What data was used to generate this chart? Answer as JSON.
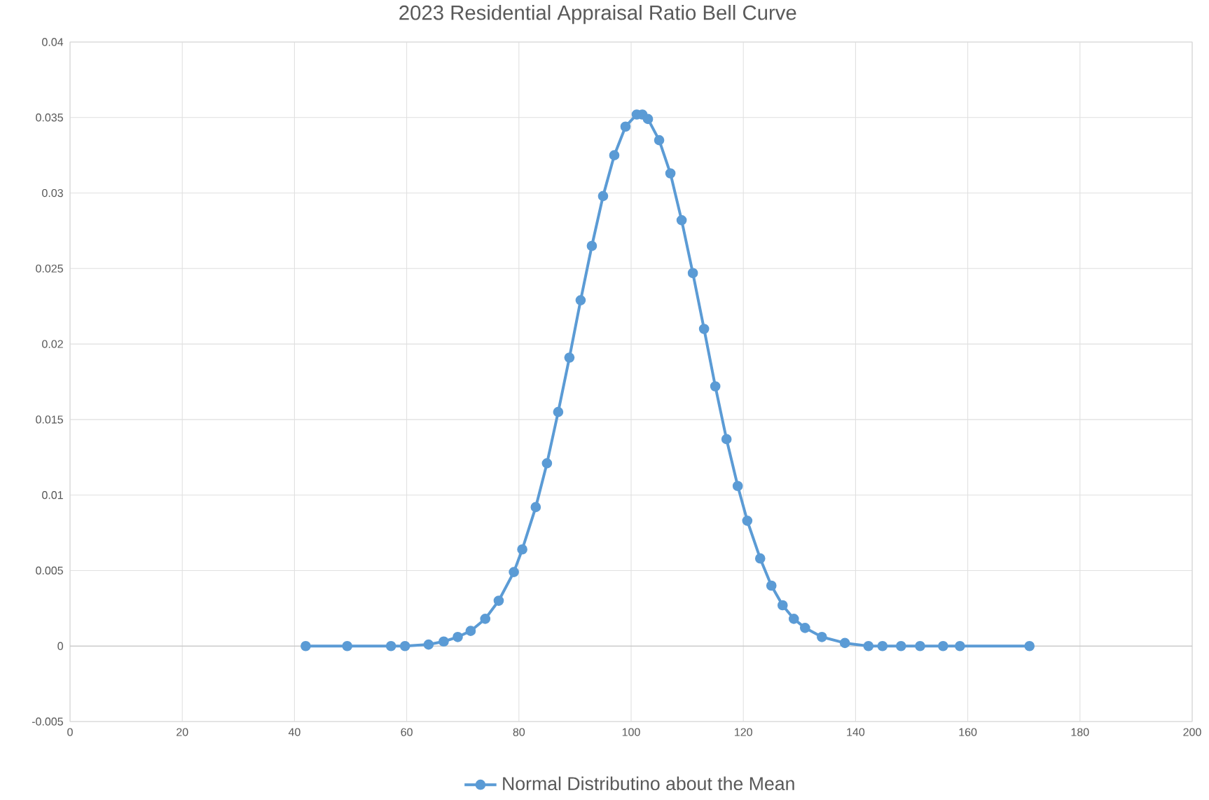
{
  "chart_data": {
    "type": "line",
    "title": "2023 Residential Appraisal Ratio Bell Curve",
    "x": [
      42,
      49.4,
      57.2,
      59.7,
      63.9,
      66.6,
      69.1,
      71.4,
      74,
      76.4,
      79.1,
      80.6,
      83,
      85,
      87,
      89,
      91,
      93,
      95,
      97,
      99,
      101,
      102,
      103,
      105,
      107,
      109,
      111,
      113,
      115,
      117,
      119,
      120.7,
      123,
      125,
      127,
      129,
      131,
      134,
      138.1,
      142.3,
      144.8,
      148.1,
      151.5,
      155.6,
      158.6,
      171
    ],
    "series": [
      {
        "name": "Normal Distributino about the Mean",
        "color": "#5b9bd5",
        "values": [
          0,
          0,
          0,
          0,
          0.0001,
          0.0003,
          0.0006,
          0.001,
          0.0018,
          0.003,
          0.0049,
          0.0064,
          0.0092,
          0.0121,
          0.0155,
          0.0191,
          0.0229,
          0.0265,
          0.0298,
          0.0325,
          0.0344,
          0.0352,
          0.0352,
          0.0349,
          0.0335,
          0.0313,
          0.0282,
          0.0247,
          0.021,
          0.0172,
          0.0137,
          0.0106,
          0.0083,
          0.0058,
          0.004,
          0.0027,
          0.0018,
          0.0012,
          0.0006,
          0.0002,
          0,
          0,
          0,
          0,
          0,
          0,
          0
        ]
      }
    ],
    "xlim": [
      0,
      200
    ],
    "xticks": [
      0,
      20,
      40,
      60,
      80,
      100,
      120,
      140,
      160,
      180,
      200
    ],
    "ylim": [
      -0.005,
      0.04
    ],
    "yticks": [
      -0.005,
      0,
      0.005,
      0.01,
      0.015,
      0.02,
      0.025,
      0.03,
      0.035,
      0.04
    ],
    "grid": true,
    "legend": "bottom",
    "marker": "circle",
    "line_style": "solid"
  }
}
